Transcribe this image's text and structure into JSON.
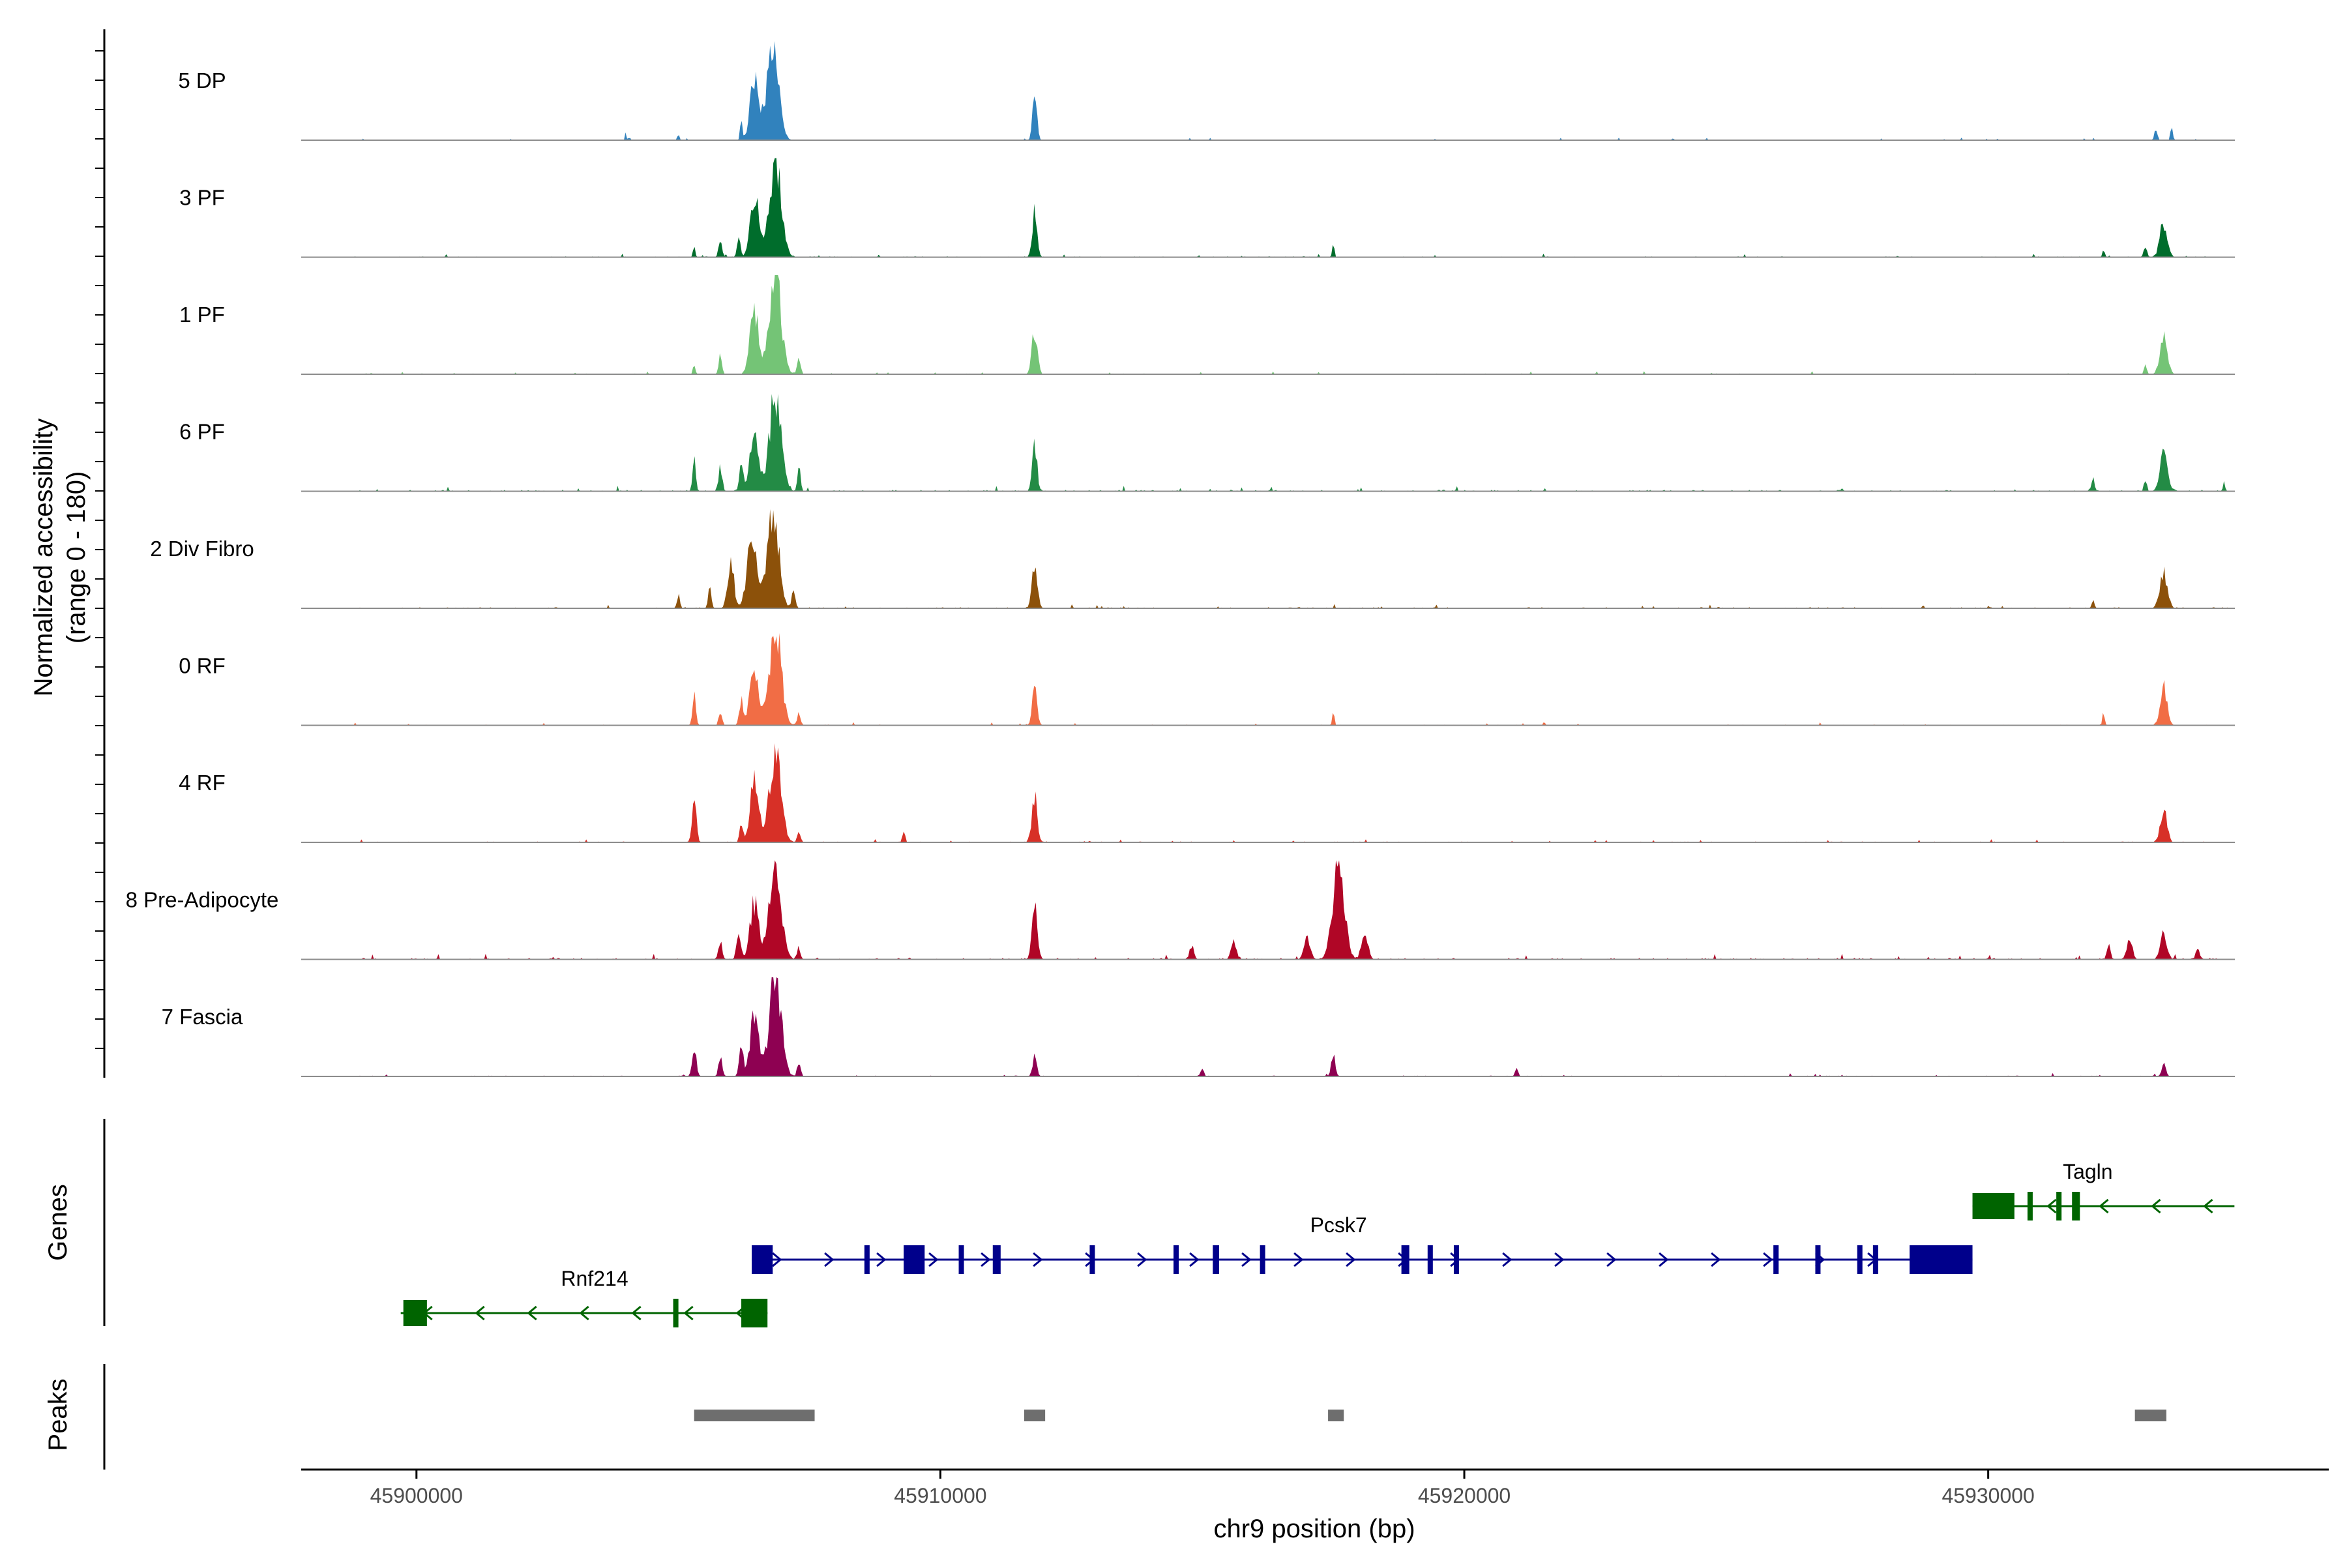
{
  "chart_data": {
    "type": "area",
    "chromosome": "chr9",
    "xlabel": "chr9 position (bp)",
    "xlim": [
      45897800,
      45936500
    ],
    "ylabel": "Normalized accessibility",
    "ylabel_range": "(range 0 - 180)",
    "ylim": [
      0,
      180
    ],
    "x_ticks": [
      45900000,
      45910000,
      45920000,
      45930000
    ],
    "x_tick_labels": [
      "45900000",
      "45910000",
      "45920000",
      "45930000"
    ],
    "tracks": [
      {
        "name": "5 DP",
        "color": "#3182bd",
        "peaks": [
          [
            45906200,
            0.8,
            20
          ],
          [
            45906450,
            2.4,
            80
          ],
          [
            45906800,
            4,
            110
          ],
          [
            45911800,
            1.8,
            40
          ],
          [
            45933200,
            0.4,
            28
          ],
          [
            45933500,
            0.6,
            20
          ],
          [
            45905000,
            0.3,
            20
          ],
          [
            45904000,
            0.5,
            10
          ]
        ],
        "noise": 0.8
      },
      {
        "name": "3 PF",
        "color": "#006d2c",
        "peaks": [
          [
            45905300,
            0.5,
            20
          ],
          [
            45905800,
            0.8,
            30
          ],
          [
            45906150,
            1.0,
            30
          ],
          [
            45906450,
            2.6,
            80
          ],
          [
            45906850,
            4,
            110
          ],
          [
            45911800,
            1.8,
            45
          ],
          [
            45917500,
            0.5,
            20
          ],
          [
            45933000,
            0.5,
            30
          ],
          [
            45933350,
            1.4,
            70
          ],
          [
            45932200,
            0.3,
            20
          ]
        ],
        "noise": 1.2
      },
      {
        "name": "1 PF",
        "color": "#74c476",
        "peaks": [
          [
            45905300,
            0.5,
            20
          ],
          [
            45905800,
            0.8,
            30
          ],
          [
            45906450,
            2.6,
            80
          ],
          [
            45906850,
            4,
            110
          ],
          [
            45907300,
            0.8,
            30
          ],
          [
            45911800,
            1.8,
            50
          ],
          [
            45933000,
            0.5,
            20
          ],
          [
            45933350,
            1.5,
            70
          ]
        ],
        "noise": 1.0
      },
      {
        "name": "6 PF",
        "color": "#238b45",
        "peaks": [
          [
            45905300,
            1.2,
            30
          ],
          [
            45905800,
            1.0,
            35
          ],
          [
            45906200,
            1.2,
            35
          ],
          [
            45906450,
            2.6,
            80
          ],
          [
            45906850,
            4,
            110
          ],
          [
            45907300,
            0.9,
            30
          ],
          [
            45911800,
            1.8,
            45
          ],
          [
            45933000,
            0.5,
            25
          ],
          [
            45933350,
            1.5,
            70
          ],
          [
            45932000,
            0.5,
            30
          ],
          [
            45934500,
            0.4,
            20
          ]
        ],
        "noise": 1.8
      },
      {
        "name": "2 Div Fibro",
        "color": "#8c510a",
        "peaks": [
          [
            45905000,
            0.6,
            25
          ],
          [
            45905600,
            0.8,
            30
          ],
          [
            45906000,
            1.8,
            60
          ],
          [
            45906400,
            2.8,
            90
          ],
          [
            45906800,
            4,
            110
          ],
          [
            45907200,
            0.8,
            30
          ],
          [
            45911800,
            1.8,
            50
          ],
          [
            45933350,
            1.4,
            70
          ],
          [
            45932000,
            0.3,
            25
          ]
        ],
        "noise": 1.4
      },
      {
        "name": "0 RF",
        "color": "#f16d45",
        "peaks": [
          [
            45905300,
            1.2,
            30
          ],
          [
            45905800,
            0.6,
            30
          ],
          [
            45906200,
            1.0,
            35
          ],
          [
            45906450,
            2.4,
            80
          ],
          [
            45906850,
            4,
            110
          ],
          [
            45907300,
            0.5,
            30
          ],
          [
            45911800,
            1.6,
            45
          ],
          [
            45917500,
            0.5,
            20
          ],
          [
            45932200,
            0.5,
            20
          ],
          [
            45933350,
            1.5,
            65
          ]
        ],
        "noise": 1.0
      },
      {
        "name": "4 RF",
        "color": "#d73027",
        "peaks": [
          [
            45905300,
            1.8,
            40
          ],
          [
            45906200,
            0.8,
            30
          ],
          [
            45906450,
            2.4,
            80
          ],
          [
            45906850,
            3.6,
            110
          ],
          [
            45907300,
            0.5,
            30
          ],
          [
            45909300,
            0.4,
            25
          ],
          [
            45911800,
            2.0,
            50
          ],
          [
            45933350,
            1.4,
            60
          ]
        ],
        "noise": 1.2
      },
      {
        "name": "8 Pre-Adipocyte",
        "color": "#b00626",
        "peaks": [
          [
            45905800,
            1.0,
            35
          ],
          [
            45906150,
            1.6,
            40
          ],
          [
            45906450,
            3.4,
            80
          ],
          [
            45906850,
            6,
            110
          ],
          [
            45907300,
            0.7,
            30
          ],
          [
            45911800,
            3.4,
            50
          ],
          [
            45914800,
            0.8,
            40
          ],
          [
            45915600,
            1.0,
            50
          ],
          [
            45917000,
            1.2,
            60
          ],
          [
            45917600,
            5.6,
            110
          ],
          [
            45918100,
            1.5,
            60
          ],
          [
            45932300,
            0.8,
            35
          ],
          [
            45932700,
            1.4,
            50
          ],
          [
            45933350,
            1.6,
            60
          ],
          [
            45934000,
            0.6,
            40
          ]
        ],
        "noise": 2.8
      },
      {
        "name": "7 Fascia",
        "color": "#8e0152",
        "peaks": [
          [
            45905300,
            1.4,
            40
          ],
          [
            45905800,
            1.0,
            35
          ],
          [
            45906200,
            1.4,
            40
          ],
          [
            45906450,
            3.0,
            80
          ],
          [
            45906850,
            5,
            110
          ],
          [
            45907300,
            0.8,
            30
          ],
          [
            45911800,
            1.0,
            40
          ],
          [
            45917500,
            1.0,
            40
          ],
          [
            45915000,
            0.4,
            30
          ],
          [
            45921000,
            0.4,
            30
          ],
          [
            45933350,
            0.6,
            40
          ]
        ],
        "noise": 1.4
      }
    ],
    "genes": [
      {
        "name": "Rnf214",
        "strand": "-",
        "color": "#006400",
        "start": 45899700,
        "end": 45906700,
        "label_x": 45903400,
        "exons": [
          [
            45899750,
            45900200,
            "utr"
          ],
          [
            45904900,
            45905000,
            "cds"
          ],
          [
            45906200,
            45906700,
            "cds"
          ]
        ]
      },
      {
        "name": "Pcsk7",
        "strand": "+",
        "color": "#00008b",
        "start": 45906400,
        "end": 45929700,
        "label_x": 45917600,
        "exons": [
          [
            45906400,
            45906800,
            "cds"
          ],
          [
            45908550,
            45908620,
            "cds"
          ],
          [
            45909300,
            45909700,
            "cds"
          ],
          [
            45910350,
            45910450,
            "cds"
          ],
          [
            45911000,
            45911150,
            "cds"
          ],
          [
            45912850,
            45912920,
            "cds"
          ],
          [
            45914450,
            45914500,
            "cds"
          ],
          [
            45915200,
            45915320,
            "cds"
          ],
          [
            45916100,
            45916160,
            "cds"
          ],
          [
            45918800,
            45918950,
            "cds"
          ],
          [
            45919300,
            45919400,
            "cds"
          ],
          [
            45919800,
            45919860,
            "cds"
          ],
          [
            45925900,
            45926000,
            "cds"
          ],
          [
            45926700,
            45926780,
            "cds"
          ],
          [
            45927500,
            45927560,
            "cds"
          ],
          [
            45927800,
            45927900,
            "cds"
          ],
          [
            45928500,
            45929700,
            "cds"
          ]
        ]
      },
      {
        "name": "Tagln",
        "strand": "-",
        "color": "#006400",
        "start": 45929700,
        "end": 45934700,
        "label_x": 45931900,
        "exons": [
          [
            45929700,
            45930500,
            "utr"
          ],
          [
            45930750,
            45930800,
            "cds"
          ],
          [
            45931300,
            45931400,
            "cds"
          ],
          [
            45931600,
            45931750,
            "cds"
          ]
        ]
      }
    ],
    "peak_regions": [
      [
        45905300,
        45907600
      ],
      [
        45911600,
        45912000
      ],
      [
        45917400,
        45917700
      ],
      [
        45932800,
        45933400
      ]
    ],
    "panel_labels": [
      "Genes",
      "Peaks"
    ]
  }
}
